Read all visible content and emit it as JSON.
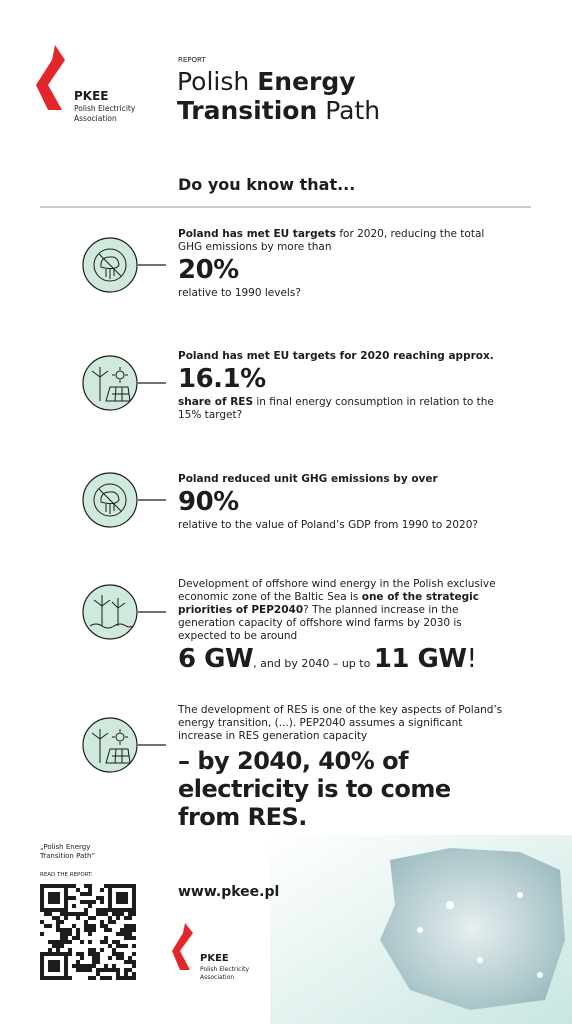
{
  "header": {
    "logo_name": "PKEE",
    "logo_sub": [
      "Polish Electricity",
      "Association"
    ],
    "report_label": "REPORT",
    "title": [
      {
        "text": "Polish ",
        "bold": false
      },
      {
        "text": "Energy",
        "bold": true
      }
    ],
    "title_line2": [
      {
        "text": "Transition",
        "bold": true
      },
      {
        "text": " Path",
        "bold": false
      }
    ]
  },
  "question": "Do you know that...",
  "items": [
    {
      "icon": "emissions",
      "lead": [
        {
          "text": "Poland has met EU targets",
          "bold": true
        },
        {
          "text": " for 2020, reducing the total GHG emissions by more than",
          "bold": false
        }
      ],
      "highlight": [
        {
          "text": "20%",
          "bold": true,
          "large": true
        }
      ],
      "tail": [
        {
          "text": "relative to 1990 levels?",
          "bold": false
        }
      ]
    },
    {
      "icon": "renewables",
      "lead": [
        {
          "text": "Poland has met EU targets for 2020 reaching approx.",
          "bold": true
        }
      ],
      "highlight": [
        {
          "text": "16.1%",
          "bold": true,
          "large": true
        }
      ],
      "tail": [
        {
          "text": "share of RES",
          "bold": true
        },
        {
          "text": " in final energy consumption in relation to the 15% target?",
          "bold": false
        }
      ]
    },
    {
      "icon": "emissions",
      "lead": [
        {
          "text": "Poland reduced unit GHG emissions by over",
          "bold": true
        }
      ],
      "highlight": [
        {
          "text": "90%",
          "bold": true,
          "large": true
        }
      ],
      "tail": [
        {
          "text": "relative to the value of Poland’s GDP from 1990 to 2020?",
          "bold": false
        }
      ]
    },
    {
      "icon": "offshore",
      "lead": [
        {
          "text": "Development of offshore wind energy in the Polish exclusive economic zone of the Baltic Sea is ",
          "bold": false
        },
        {
          "text": "one of the strategic priorities of PEP2040",
          "bold": true
        },
        {
          "text": "? The planned increase in the generation capacity of offshore wind farms by 2030 is expected to be around",
          "bold": false
        }
      ],
      "highlight": [
        {
          "text": "6 GW",
          "bold": true,
          "large": true
        },
        {
          "text": ", and by 2040 – up to ",
          "bold": false,
          "large": false
        },
        {
          "text": "11 GW",
          "bold": true,
          "large": true
        },
        {
          "text": "!",
          "bold": false,
          "large": true
        }
      ],
      "tail": []
    },
    {
      "icon": "renewables",
      "lead": [
        {
          "text": "The development of RES is one of the key aspects of Poland’s energy transition, (...). PEP2040 assumes a significant increase in RES generation capacity",
          "bold": false
        }
      ],
      "highlight": [
        {
          "text": "– by 2040, 40% of electricity is to come from RES.",
          "bold": true,
          "large": true
        }
      ],
      "tail": []
    }
  ],
  "footer": {
    "report_name": [
      "„Polish Energy",
      "Transition Path”"
    ],
    "read_label": "READ THE REPORT:",
    "url": "www.pkee.pl",
    "logo_name": "PKEE",
    "logo_sub": [
      "Polish Electricity",
      "Association"
    ]
  }
}
